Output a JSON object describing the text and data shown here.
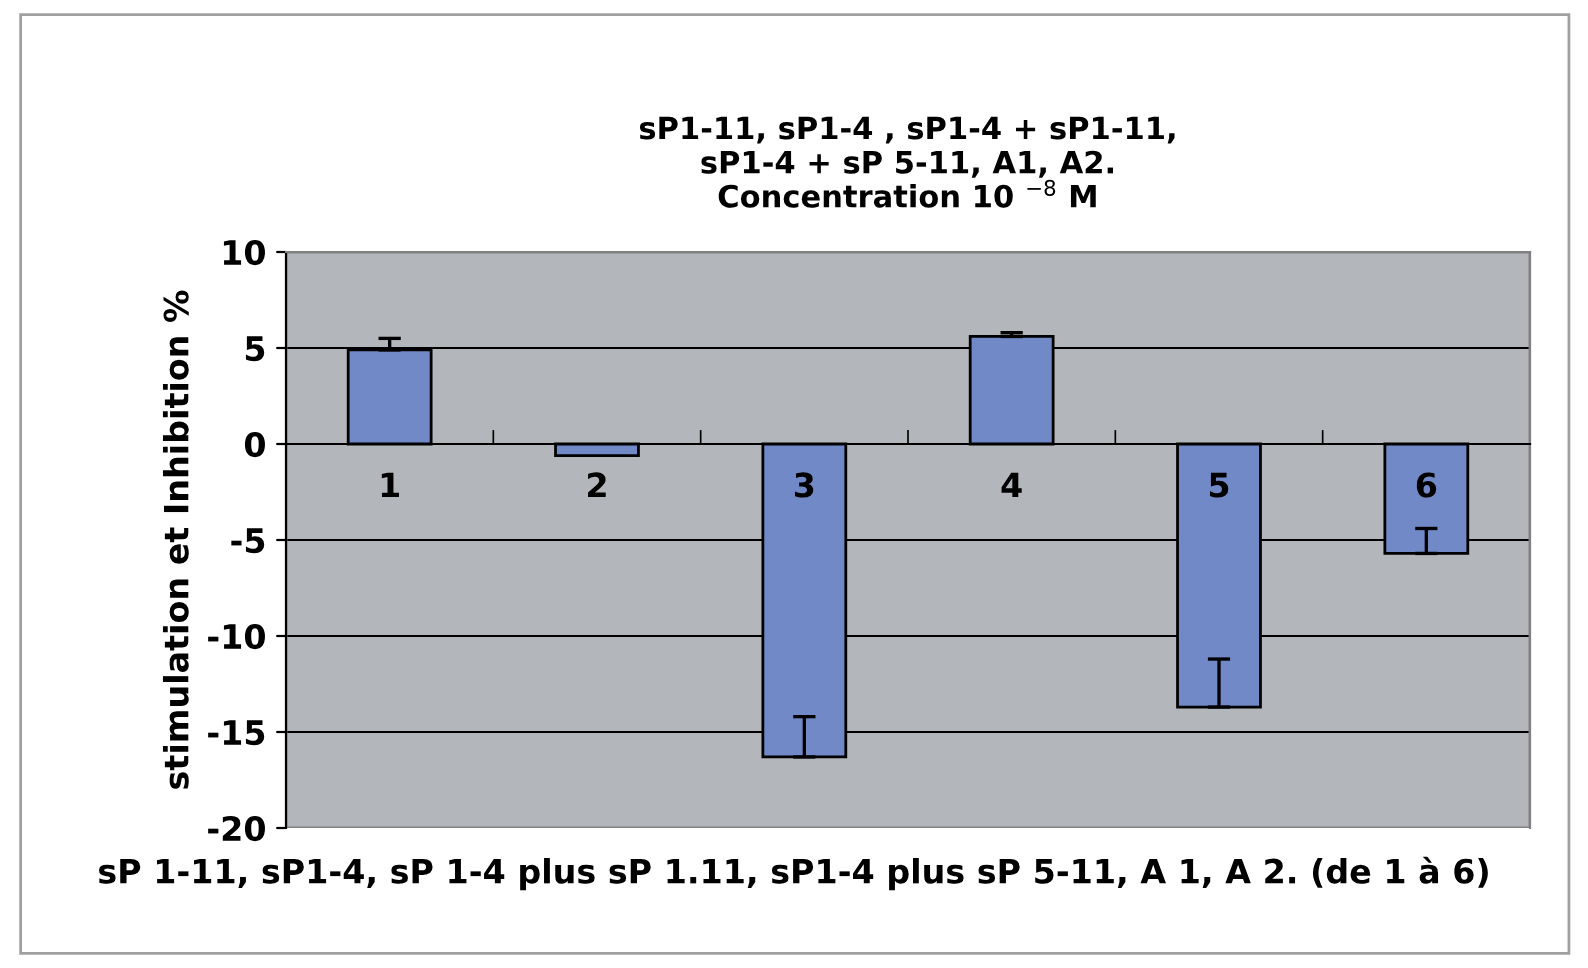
{
  "chart_data": {
    "type": "bar",
    "title": "sP1-11, sP1-4 , sP1-4 + sP1-11,\nsP1-4 + sP 5-11, A1, A2.\nConcentration 10 $^{−8}$ M",
    "xlabel": "sP 1-11, sP1-4, sP 1-4 plus sP 1.11, sP1-4 plus sP 5-11, A 1, A 2. (de 1 à 6)",
    "ylabel": "stimulation et Inhibition %",
    "categories": [
      "1",
      "2",
      "3",
      "4",
      "5",
      "6"
    ],
    "values": [
      4.9,
      -0.6,
      -16.3,
      5.6,
      -13.7,
      -5.7
    ],
    "errors": [
      [
        4.9,
        5.5
      ],
      null,
      [
        -16.3,
        -14.2
      ],
      [
        5.6,
        5.8
      ],
      [
        -13.7,
        -11.2
      ],
      [
        -5.7,
        -4.4
      ]
    ],
    "color": "#7189c6",
    "ylim": [
      -20,
      10
    ],
    "yticks": [
      -20,
      -15,
      -10,
      -5,
      0,
      5,
      10
    ],
    "grid": "y",
    "legend": false
  }
}
